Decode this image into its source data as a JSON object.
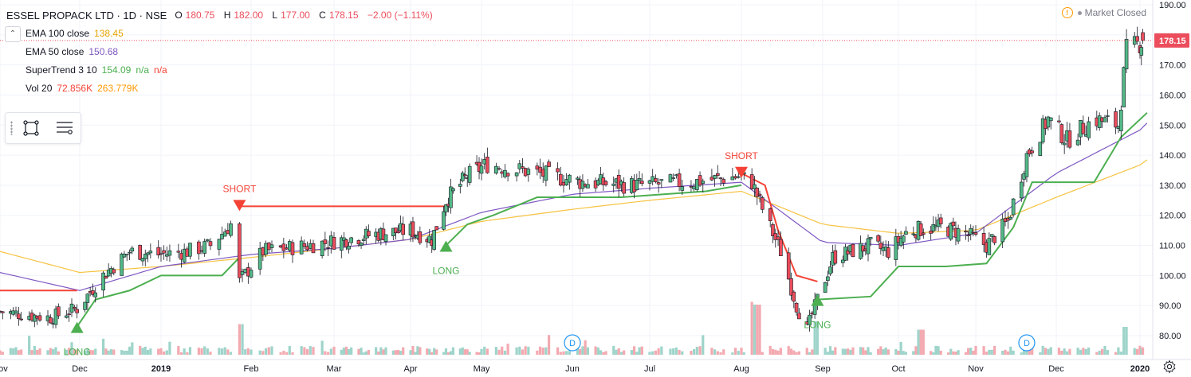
{
  "header": {
    "title": "ESSEL PROPACK LTD · 1D · NSE",
    "ohlc": {
      "open_label": "O",
      "open": "180.75",
      "high_label": "H",
      "high": "182.00",
      "low_label": "L",
      "low": "177.00",
      "close_label": "C",
      "close": "178.15",
      "change": "−2.00 (−1.11%)"
    },
    "market_status": "Market Closed"
  },
  "indicators": [
    {
      "name": "EMA 100 close",
      "values": [
        "138.45"
      ],
      "color": "#e6a600"
    },
    {
      "name": "EMA 50 close",
      "values": [
        "150.68"
      ],
      "color": "#7e57c2"
    },
    {
      "name": "SuperTrend 3 10",
      "values": [
        "154.09",
        "n/a",
        "n/a"
      ],
      "colors": [
        "#4caf50",
        "#4caf50",
        "#f44336"
      ]
    },
    {
      "name": "Vol 20",
      "values": [
        "72.856K",
        "263.779K"
      ],
      "colors": [
        "#f44336",
        "#ff9800"
      ]
    }
  ],
  "colors": {
    "up": "#53b987",
    "down": "#eb4d5c",
    "up_body": "#53b987",
    "down_body": "#eb4d5c",
    "ema100": "#f6c342",
    "ema50": "#7e57c2",
    "st_up": "#4caf50",
    "st_down": "#f44336",
    "vol_up": "#9ed4ca",
    "vol_down": "#f3a9b0",
    "price_tag": "#eb4d5c"
  },
  "chart_data": {
    "type": "candlestick",
    "symbol": "ESSEL PROPACK LTD",
    "interval": "1D",
    "exchange": "NSE",
    "ylim": [
      75,
      190
    ],
    "y_ticks": [
      "190.00",
      "180.00",
      "170.00",
      "160.00",
      "150.00",
      "140.00",
      "130.00",
      "120.00",
      "110.00",
      "100.00",
      "90.00",
      "80.00"
    ],
    "x_tick_labels": [
      "Nov",
      "Dec",
      "2019",
      "Feb",
      "Mar",
      "Apr",
      "May",
      "Jun",
      "Jul",
      "Aug",
      "Sep",
      "Oct",
      "Nov",
      "Dec",
      "2020"
    ],
    "last_price": "178.15",
    "close_path": [
      [
        "2018-11-01",
        88
      ],
      [
        "2018-11-20",
        86
      ],
      [
        "2018-11-30",
        89
      ],
      [
        "2018-12-10",
        100
      ],
      [
        "2018-12-20",
        108
      ],
      [
        "2018-12-31",
        107
      ],
      [
        "2019-01-10",
        108
      ],
      [
        "2019-01-18",
        110
      ],
      [
        "2019-01-25",
        117
      ],
      [
        "2019-01-28",
        98
      ],
      [
        "2019-02-05",
        108
      ],
      [
        "2019-02-20",
        110
      ],
      [
        "2019-03-05",
        112
      ],
      [
        "2019-03-20",
        114
      ],
      [
        "2019-04-01",
        115
      ],
      [
        "2019-04-10",
        112
      ],
      [
        "2019-04-16",
        125
      ],
      [
        "2019-04-25",
        133
      ],
      [
        "2019-05-03",
        137
      ],
      [
        "2019-05-20",
        134
      ],
      [
        "2019-06-05",
        131
      ],
      [
        "2019-06-25",
        130
      ],
      [
        "2019-07-15",
        131
      ],
      [
        "2019-07-31",
        133
      ],
      [
        "2019-08-05",
        131
      ],
      [
        "2019-08-10",
        120
      ],
      [
        "2019-08-16",
        108
      ],
      [
        "2019-08-22",
        90
      ],
      [
        "2019-08-26",
        82
      ],
      [
        "2019-08-30",
        92
      ],
      [
        "2019-09-05",
        106
      ],
      [
        "2019-09-20",
        110
      ],
      [
        "2019-09-27",
        108
      ],
      [
        "2019-10-05",
        115
      ],
      [
        "2019-10-18",
        116
      ],
      [
        "2019-10-28",
        114
      ],
      [
        "2019-11-05",
        110
      ],
      [
        "2019-11-13",
        118
      ],
      [
        "2019-11-20",
        140
      ],
      [
        "2019-11-28",
        152
      ],
      [
        "2019-12-05",
        145
      ],
      [
        "2019-12-15",
        152
      ],
      [
        "2019-12-24",
        150
      ],
      [
        "2019-12-27",
        175
      ],
      [
        "2020-01-03",
        178
      ]
    ],
    "ema100_path": [
      [
        "2018-11-01",
        108
      ],
      [
        "2018-12-01",
        101
      ],
      [
        "2019-01-01",
        103
      ],
      [
        "2019-02-01",
        106
      ],
      [
        "2019-03-01",
        109
      ],
      [
        "2019-04-01",
        112
      ],
      [
        "2019-05-01",
        118
      ],
      [
        "2019-06-01",
        122
      ],
      [
        "2019-07-01",
        125
      ],
      [
        "2019-08-01",
        128
      ],
      [
        "2019-09-01",
        117
      ],
      [
        "2019-10-01",
        114
      ],
      [
        "2019-11-01",
        115
      ],
      [
        "2019-12-01",
        126
      ],
      [
        "2020-01-06",
        138.45
      ]
    ],
    "ema50_path": [
      [
        "2018-11-01",
        101
      ],
      [
        "2018-12-01",
        95
      ],
      [
        "2019-01-01",
        103
      ],
      [
        "2019-02-01",
        107
      ],
      [
        "2019-03-01",
        109
      ],
      [
        "2019-04-01",
        112
      ],
      [
        "2019-05-01",
        121
      ],
      [
        "2019-06-01",
        127
      ],
      [
        "2019-07-01",
        129
      ],
      [
        "2019-08-01",
        131
      ],
      [
        "2019-09-01",
        111
      ],
      [
        "2019-10-01",
        110
      ],
      [
        "2019-11-01",
        114
      ],
      [
        "2019-12-01",
        134
      ],
      [
        "2020-01-06",
        150.68
      ]
    ],
    "supertrend_up_segments": [
      [
        [
          "2018-11-30",
          83
        ],
        [
          "2018-12-07",
          92
        ],
        [
          "2018-12-20",
          95
        ],
        [
          "2019-01-01",
          100
        ],
        [
          "2019-01-22",
          100
        ],
        [
          "2019-01-28",
          106
        ]
      ],
      [
        [
          "2019-04-16",
          110
        ],
        [
          "2019-04-25",
          117
        ],
        [
          "2019-05-05",
          120
        ],
        [
          "2019-05-20",
          126
        ],
        [
          "2019-06-20",
          126
        ],
        [
          "2019-07-20",
          128
        ],
        [
          "2019-08-01",
          130
        ]
      ],
      [
        [
          "2019-08-30",
          92
        ],
        [
          "2019-09-20",
          93
        ],
        [
          "2019-10-01",
          103
        ],
        [
          "2019-10-20",
          103
        ],
        [
          "2019-11-05",
          104
        ],
        [
          "2019-11-15",
          116
        ],
        [
          "2019-11-22",
          131
        ],
        [
          "2019-12-15",
          131
        ],
        [
          "2019-12-25",
          146
        ],
        [
          "2020-01-06",
          154.09
        ]
      ]
    ],
    "supertrend_down_segments": [
      [
        [
          "2018-11-01",
          95
        ],
        [
          "2018-11-30",
          95
        ]
      ],
      [
        [
          "2019-01-28",
          123
        ],
        [
          "2019-04-16",
          123
        ]
      ],
      [
        [
          "2019-08-01",
          134
        ],
        [
          "2019-08-10",
          130
        ],
        [
          "2019-08-15",
          115
        ],
        [
          "2019-08-22",
          100
        ],
        [
          "2019-08-30",
          98
        ]
      ]
    ],
    "signals": [
      {
        "label": "LONG",
        "date": "2018-11-30",
        "price": 83,
        "type": "long"
      },
      {
        "label": "SHORT",
        "date": "2019-01-28",
        "price": 123,
        "type": "short"
      },
      {
        "label": "LONG",
        "date": "2019-04-16",
        "price": 110,
        "type": "long"
      },
      {
        "label": "SHORT",
        "date": "2019-08-01",
        "price": 134,
        "type": "short"
      },
      {
        "label": "LONG",
        "date": "2019-08-30",
        "price": 92,
        "type": "long"
      }
    ],
    "dividend_markers": [
      {
        "label": "D",
        "date": "2019-06-01"
      },
      {
        "label": "D",
        "date": "2019-11-20"
      }
    ],
    "volume_spikes": [
      {
        "date": "2019-01-28",
        "level": 0.55
      },
      {
        "date": "2019-08-05",
        "level": 0.95
      },
      {
        "date": "2019-08-07",
        "level": 0.9
      },
      {
        "date": "2019-08-30",
        "level": 0.6
      },
      {
        "date": "2019-10-10",
        "level": 0.45
      },
      {
        "date": "2019-12-27",
        "level": 0.5
      }
    ]
  }
}
